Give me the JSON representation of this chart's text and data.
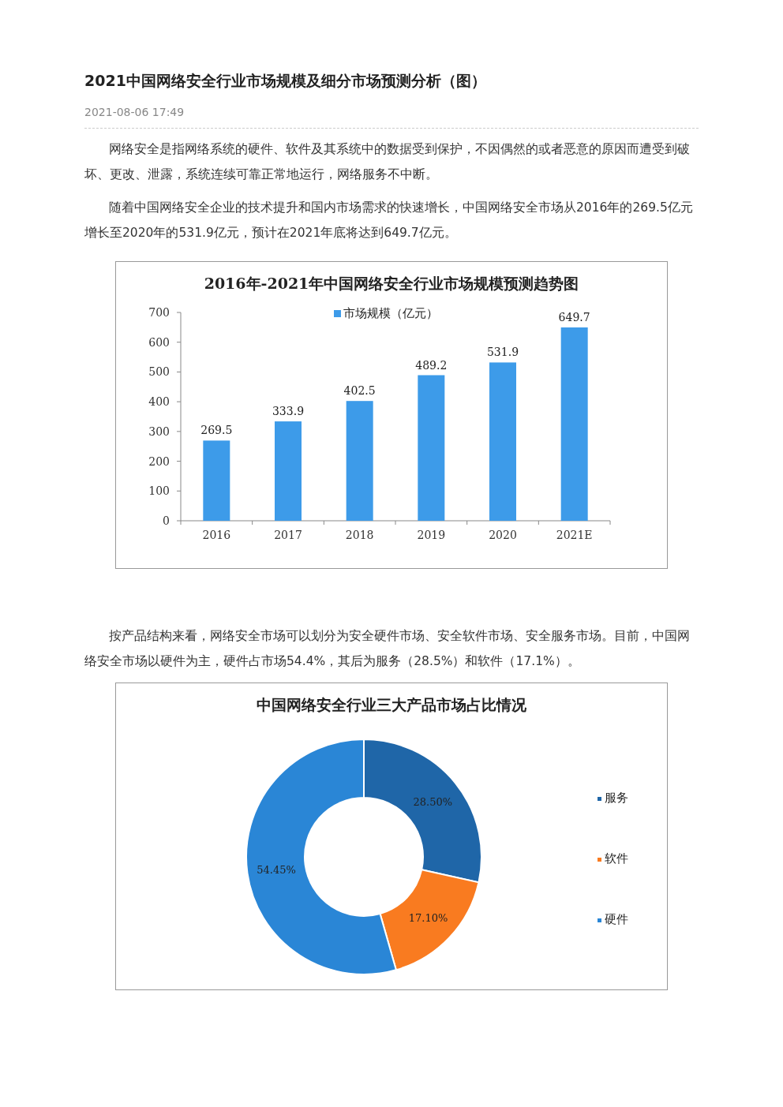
{
  "chart_data": [
    {
      "type": "other",
      "title": "2021中国网络安全行业市场规模及细分市场预测分析（图）",
      "annotations": [
        "2021-08-06 17:49",
        "网络安全是指网络系统的硬件、软件及其系统中的数据受到保护，不因偶然的或者恶意的原因而遭受到破坏、更改、泄露，系统连续可靠正常地运行，网络服务不中断。",
        "随着中国网络安全企业的技术提升和国内市场需求的快速增长，中国网络安全市场从2016年的269.5亿元增长至2020年的531.9亿元，预计在2021年底将达到649.7亿元。"
      ]
    },
    {
      "type": "bar",
      "title": "2016年-2021年中国网络安全行业市场规模预测趋势图",
      "categories": [
        "2016",
        "2017",
        "2018",
        "2019",
        "2020",
        "2021E"
      ],
      "series": [
        {
          "name": "市场规模（亿元）",
          "color": "#3d9be9",
          "values": [
            269.5,
            333.9,
            402.5,
            489.2,
            531.9,
            649.7
          ]
        }
      ],
      "ylim": [
        0,
        700
      ],
      "yticks": [
        0,
        100,
        200,
        300,
        400,
        500,
        600,
        700
      ],
      "legend": "top",
      "data_labels": true
    },
    {
      "type": "other",
      "annotations": [
        "按产品结构来看，网络安全市场可以划分为安全硬件市场、安全软件市场、安全服务市场。目前，中国网络安全市场以硬件为主，硬件占市场54.4%，其后为服务（28.5%）和软件（17.1%）。"
      ]
    },
    {
      "type": "donut",
      "title": "中国网络安全行业三大产品市场占比情况",
      "categories": [
        "服务",
        "软件",
        "硬件"
      ],
      "values": [
        28.5,
        17.1,
        54.45
      ],
      "value_labels": [
        "28.50%",
        "17.10%",
        "54.45%"
      ],
      "colors": [
        "#1f66a8",
        "#f97b20",
        "#2a86d6"
      ],
      "legend": "right"
    }
  ]
}
